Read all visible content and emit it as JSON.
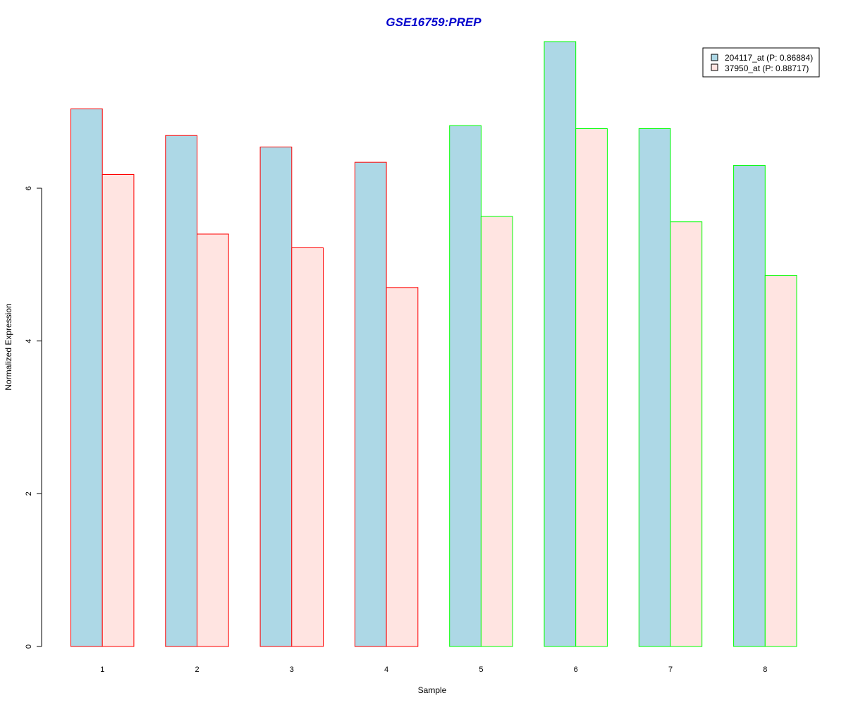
{
  "colors": {
    "title": "#0000cc",
    "series1_fill": "#add8e6",
    "series2_fill": "#ffe4e1",
    "group_a_border": "#ff0000",
    "group_b_border": "#00ff00",
    "axis": "#000000"
  },
  "chart_data": {
    "type": "bar",
    "title": "GSE16759:PREP",
    "xlabel": "Sample",
    "ylabel": "Normalized Expression",
    "categories": [
      "1",
      "2",
      "3",
      "4",
      "5",
      "6",
      "7",
      "8"
    ],
    "series": [
      {
        "name": "204117_at (P: 0.86884)",
        "values": [
          7.04,
          6.69,
          6.54,
          6.34,
          6.82,
          7.92,
          6.78,
          6.3
        ]
      },
      {
        "name": "37950_at (P: 0.88717)",
        "values": [
          6.18,
          5.4,
          5.22,
          4.7,
          5.63,
          6.78,
          5.56,
          4.86
        ]
      }
    ],
    "border_groups": [
      "a",
      "a",
      "a",
      "a",
      "b",
      "b",
      "b",
      "b"
    ],
    "yticks": [
      0,
      2,
      4,
      6
    ],
    "ylim": [
      0,
      7.92
    ],
    "grid": false,
    "legend_position": "top-right"
  }
}
